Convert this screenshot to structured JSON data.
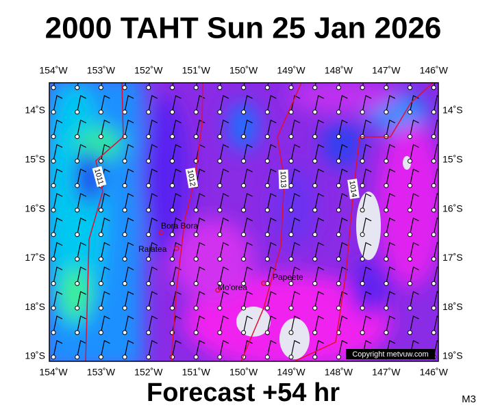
{
  "title": "2000 TAHT Sun 25 Jan 2026",
  "footer": "Forecast +54 hr",
  "model": "M3",
  "copyright": "Copyright metvuw.com",
  "map": {
    "lon_ticks": [
      "154˚W",
      "153˚W",
      "152˚W",
      "151˚W",
      "150˚W",
      "149˚W",
      "148˚W",
      "147˚W",
      "146˚W"
    ],
    "lat_ticks": [
      "14˚S",
      "15˚S",
      "16˚S",
      "17˚S",
      "18˚S",
      "19˚S"
    ],
    "isobars": [
      {
        "label": "1011"
      },
      {
        "label": "1012"
      },
      {
        "label": "1013"
      },
      {
        "label": "1014"
      }
    ],
    "places": [
      {
        "name": "Bora Bora"
      },
      {
        "name": "Raiatea"
      },
      {
        "name": "Mo'orea"
      },
      {
        "name": "Papeete"
      }
    ]
  }
}
